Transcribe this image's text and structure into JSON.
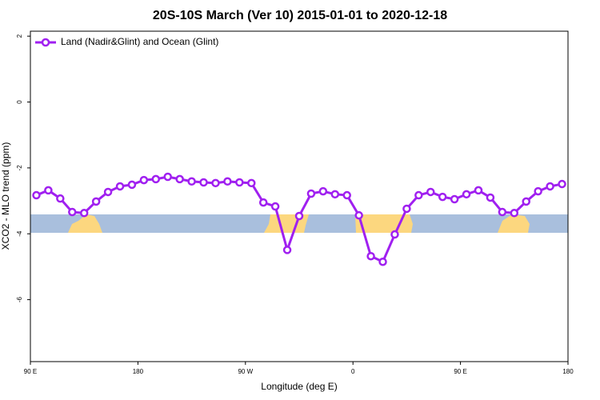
{
  "chart_data": {
    "type": "line",
    "title": "20S-10S March (Ver 10)   2015-01-01 to 2020-12-18",
    "x_label": "Longitude (deg E)",
    "y_label": "XCO2 - MLO trend (ppm)",
    "x": [
      95,
      105,
      115,
      125,
      135,
      145,
      155,
      165,
      175,
      185,
      195,
      205,
      215,
      225,
      235,
      245,
      255,
      265,
      275,
      285,
      295,
      305,
      315,
      325,
      335,
      345,
      355,
      365,
      375,
      385,
      395,
      405,
      415,
      425,
      435,
      445,
      455,
      465,
      475,
      485,
      495,
      505,
      515,
      525,
      535
    ],
    "series": [
      {
        "name": "Land (Nadir&Glint) and Ocean (Glint)",
        "color": "#a020f0",
        "values": [
          -2.83,
          -2.68,
          -2.93,
          -3.34,
          -3.37,
          -3.02,
          -2.73,
          -2.56,
          -2.51,
          -2.37,
          -2.34,
          -2.27,
          -2.34,
          -2.41,
          -2.44,
          -2.46,
          -2.41,
          -2.44,
          -2.46,
          -3.05,
          -3.17,
          -4.49,
          -3.46,
          -2.78,
          -2.71,
          -2.8,
          -2.83,
          -3.44,
          -4.68,
          -4.85,
          -4.02,
          -3.24,
          -2.83,
          -2.73,
          -2.88,
          -2.95,
          -2.8,
          -2.68,
          -2.9,
          -3.34,
          -3.37,
          -3.02,
          -2.71,
          -2.56,
          -2.49
        ]
      }
    ],
    "xlim": [
      90,
      540
    ],
    "xticks": [
      {
        "value": 90,
        "label": "90 E"
      },
      180,
      {
        "value": 270,
        "label": "90 W"
      },
      {
        "value": 360,
        "label": "0"
      },
      {
        "value": 450,
        "label": "90 E"
      },
      {
        "value": 540,
        "label": "180"
      }
    ],
    "ylim": [
      -7.88,
      2.15
    ],
    "yticks": [
      -6,
      -4,
      -2,
      0,
      2
    ],
    "legend": "top-left"
  }
}
